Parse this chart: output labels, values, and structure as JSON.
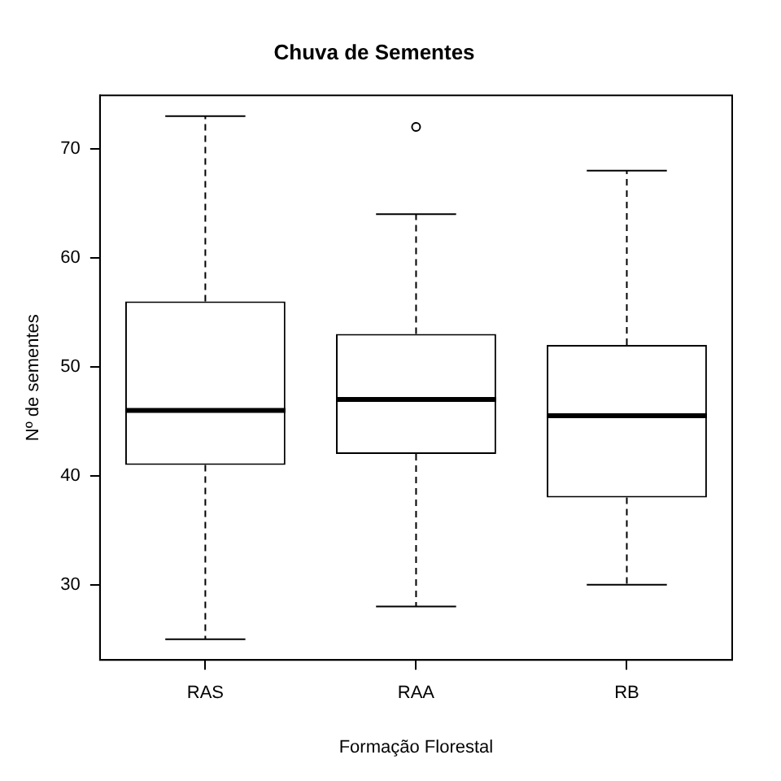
{
  "chart_data": {
    "type": "box",
    "title": "Chuva de Sementes",
    "xlabel": "Formação Florestal",
    "ylabel": "Nº de sementes",
    "categories": [
      "RAS",
      "RAA",
      "RB"
    ],
    "boxes": [
      {
        "low": 25,
        "q1": 41,
        "median": 46,
        "q3": 56,
        "high": 73
      },
      {
        "low": 28,
        "q1": 42,
        "median": 47,
        "q3": 53,
        "high": 64,
        "outliers": [
          72
        ]
      },
      {
        "low": 30,
        "q1": 38,
        "median": 45.5,
        "q3": 52,
        "high": 68
      }
    ],
    "ylim": [
      23.1,
      74.9
    ],
    "yticks": [
      30,
      40,
      50,
      60,
      70
    ],
    "grid": false,
    "legend": false
  }
}
